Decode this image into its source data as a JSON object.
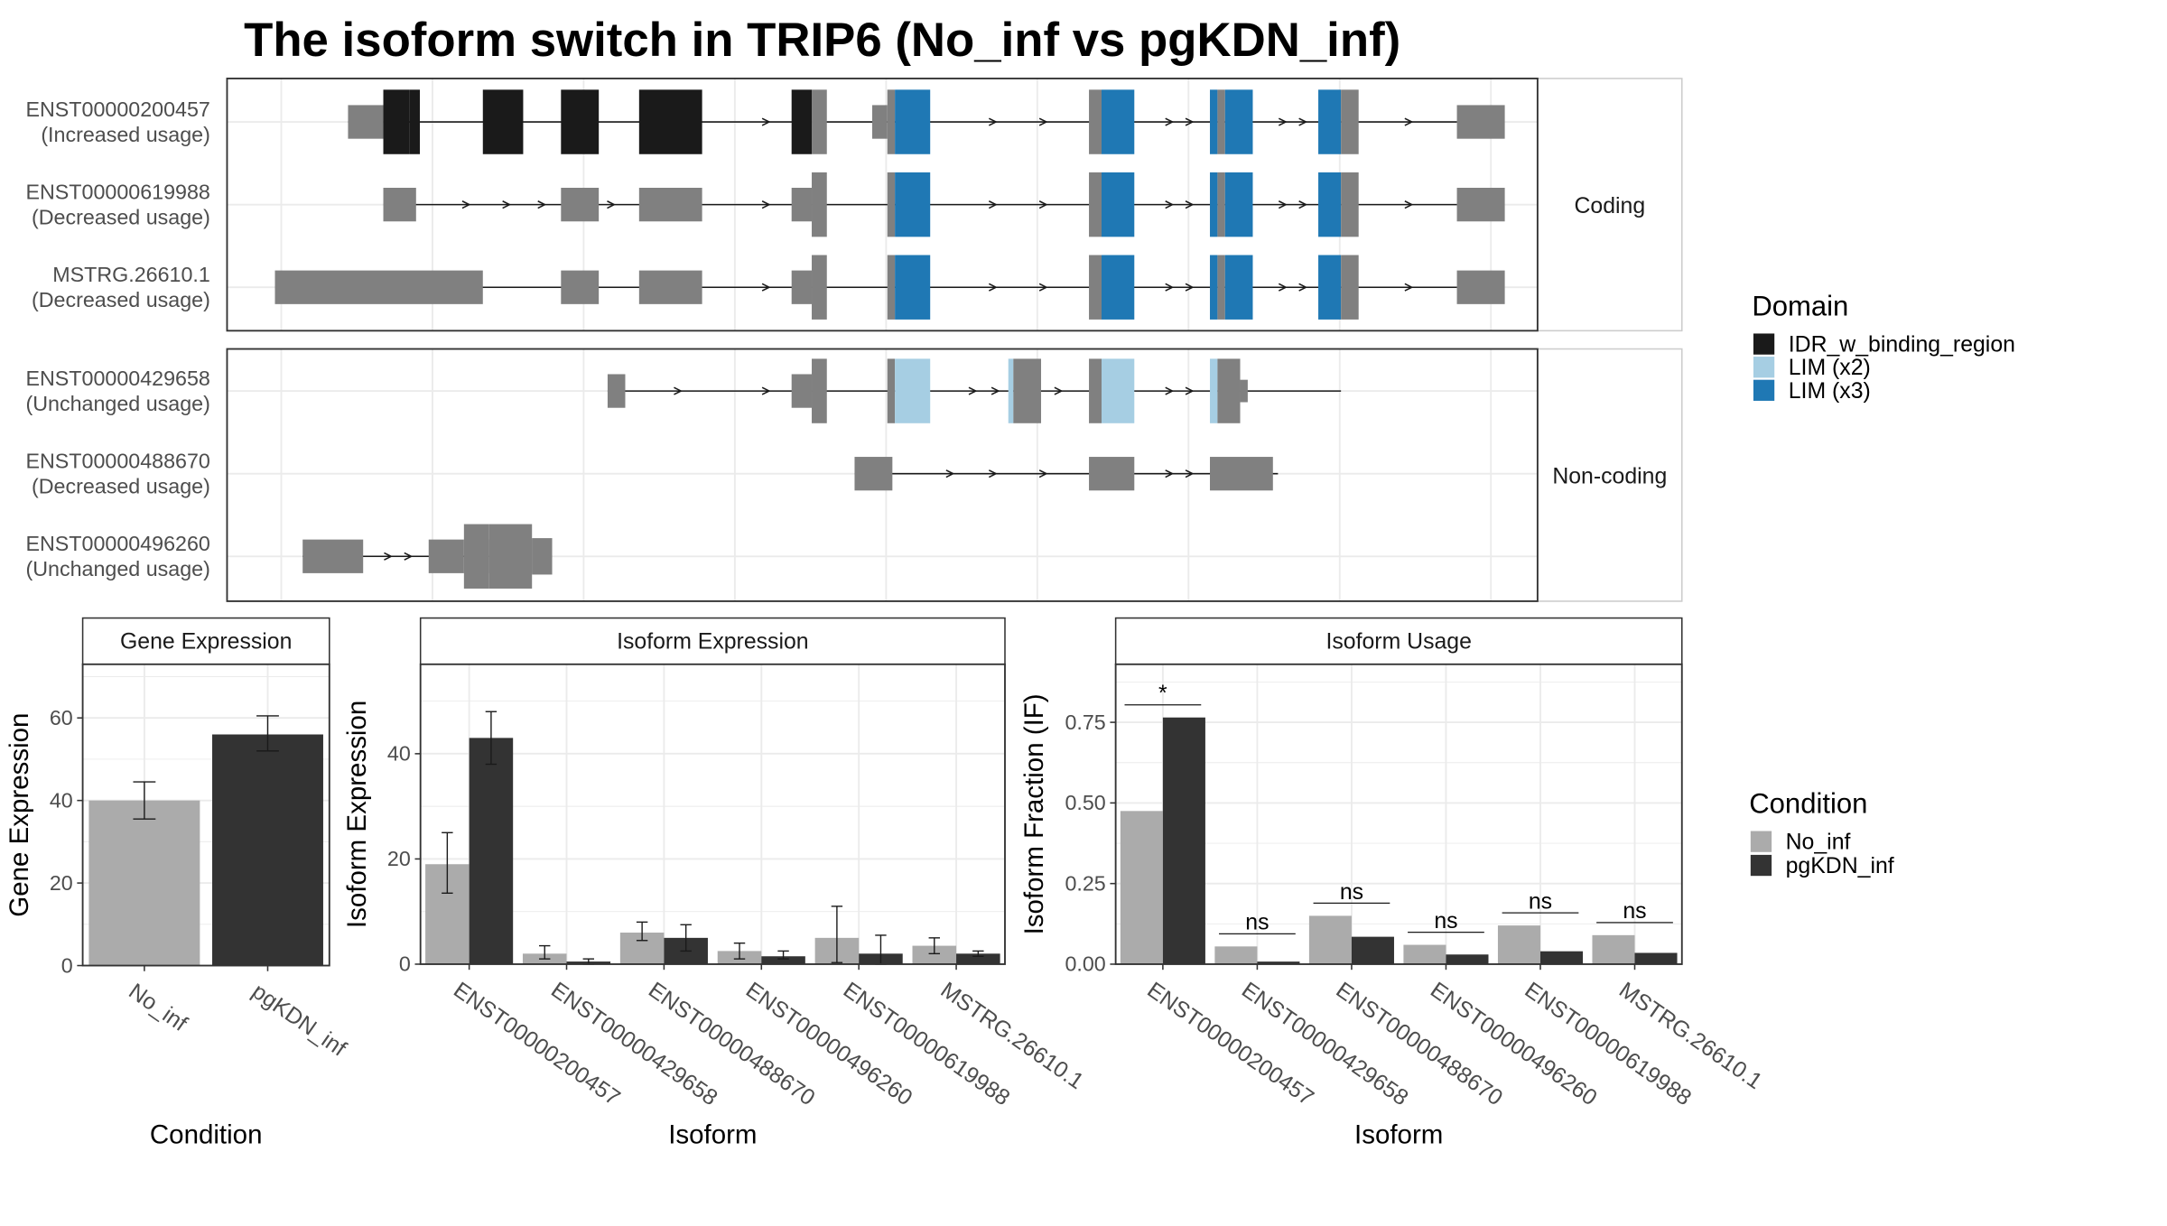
{
  "title": "The isoform switch in TRIP6 (No_inf vs pgKDN_inf)",
  "colors": {
    "idr": "#1a1a1a",
    "lim2": "#a6cee3",
    "lim3": "#1f78b4",
    "gene_body": "#808080",
    "no_inf": "#ababab",
    "pgkdn_inf": "#333333",
    "panel_border": "#333333",
    "strip_fill": "#ffffff",
    "grid": "#ebebeb"
  },
  "transcripts": {
    "facets": [
      "Coding",
      "Non-coding"
    ],
    "tracks": [
      {
        "id": "ENST00000200457",
        "usage": "(Increased usage)",
        "facet": "Coding",
        "line": [
          0.96,
          9.76
        ],
        "utr": [
          [
            0.96,
            1.24
          ],
          [
            5.12,
            5.24
          ],
          [
            9.76,
            10.14
          ]
        ],
        "cds": [
          {
            "s": 1.24,
            "e": 1.45,
            "d": "idr"
          },
          {
            "s": 1.45,
            "e": 1.53,
            "d": "idr"
          },
          {
            "s": 2.03,
            "e": 2.35,
            "d": "idr"
          },
          {
            "s": 2.65,
            "e": 2.95,
            "d": "idr"
          },
          {
            "s": 3.27,
            "e": 3.77,
            "d": "idr"
          },
          {
            "s": 4.48,
            "e": 4.64,
            "d": "idr"
          },
          {
            "s": 4.64,
            "e": 4.76,
            "d": "none"
          },
          {
            "s": 5.24,
            "e": 5.3,
            "d": "none"
          },
          {
            "s": 5.3,
            "e": 5.58,
            "d": "lim3"
          },
          {
            "s": 6.84,
            "e": 6.94,
            "d": "none"
          },
          {
            "s": 6.94,
            "e": 7.2,
            "d": "lim3"
          },
          {
            "s": 7.8,
            "e": 7.86,
            "d": "lim3"
          },
          {
            "s": 7.86,
            "e": 7.92,
            "d": "none"
          },
          {
            "s": 7.92,
            "e": 8.14,
            "d": "lim3"
          },
          {
            "s": 8.66,
            "e": 8.84,
            "d": "lim3"
          },
          {
            "s": 8.84,
            "e": 8.98,
            "d": "none"
          }
        ],
        "arrows": [
          4.28,
          6.08,
          6.48,
          7.48,
          7.64,
          8.38,
          8.54,
          9.38
        ]
      },
      {
        "id": "ENST00000619988",
        "usage": "(Decreased usage)",
        "facet": "Coding",
        "line": [
          1.24,
          9.76
        ],
        "utr": [
          [
            1.24,
            1.5
          ],
          [
            2.65,
            2.95
          ],
          [
            3.27,
            3.77
          ],
          [
            4.48,
            4.64
          ],
          [
            9.76,
            10.14
          ]
        ],
        "cds": [
          {
            "s": 4.64,
            "e": 4.76,
            "d": "none"
          },
          {
            "s": 5.24,
            "e": 5.3,
            "d": "none"
          },
          {
            "s": 5.3,
            "e": 5.58,
            "d": "lim3"
          },
          {
            "s": 6.84,
            "e": 6.94,
            "d": "none"
          },
          {
            "s": 6.94,
            "e": 7.2,
            "d": "lim3"
          },
          {
            "s": 7.8,
            "e": 7.86,
            "d": "lim3"
          },
          {
            "s": 7.86,
            "e": 7.92,
            "d": "none"
          },
          {
            "s": 7.92,
            "e": 8.14,
            "d": "lim3"
          },
          {
            "s": 8.66,
            "e": 8.84,
            "d": "lim3"
          },
          {
            "s": 8.84,
            "e": 8.98,
            "d": "none"
          }
        ],
        "arrows": [
          1.9,
          2.22,
          2.5,
          3.05,
          4.28,
          6.08,
          6.48,
          7.48,
          7.64,
          8.38,
          8.54,
          9.38
        ]
      },
      {
        "id": "MSTRG.26610.1",
        "usage": "(Decreased usage)",
        "facet": "Coding",
        "line": [
          0.38,
          9.76
        ],
        "utr": [
          [
            0.38,
            2.03
          ],
          [
            2.65,
            2.95
          ],
          [
            3.27,
            3.77
          ],
          [
            4.48,
            4.64
          ],
          [
            9.76,
            10.14
          ]
        ],
        "cds": [
          {
            "s": 4.64,
            "e": 4.76,
            "d": "none"
          },
          {
            "s": 5.24,
            "e": 5.3,
            "d": "none"
          },
          {
            "s": 5.3,
            "e": 5.58,
            "d": "lim3"
          },
          {
            "s": 6.84,
            "e": 6.94,
            "d": "none"
          },
          {
            "s": 6.94,
            "e": 7.2,
            "d": "lim3"
          },
          {
            "s": 7.8,
            "e": 7.86,
            "d": "lim3"
          },
          {
            "s": 7.86,
            "e": 7.92,
            "d": "none"
          },
          {
            "s": 7.92,
            "e": 8.14,
            "d": "lim3"
          },
          {
            "s": 8.66,
            "e": 8.84,
            "d": "lim3"
          },
          {
            "s": 8.84,
            "e": 8.98,
            "d": "none"
          }
        ],
        "arrows": [
          4.28,
          6.08,
          6.48,
          7.48,
          7.64,
          8.38,
          8.54,
          9.38
        ]
      },
      {
        "id": "ENST00000429658",
        "usage": "(Unchanged usage)",
        "facet": "Non-coding",
        "line": [
          3.02,
          8.84
        ],
        "utr": [
          [
            3.02,
            3.16
          ],
          [
            4.48,
            4.64
          ]
        ],
        "cds": [
          {
            "s": 4.64,
            "e": 4.76,
            "d": "none"
          },
          {
            "s": 5.24,
            "e": 5.3,
            "d": "none"
          },
          {
            "s": 5.3,
            "e": 5.58,
            "d": "lim2"
          },
          {
            "s": 6.2,
            "e": 6.24,
            "d": "lim2"
          },
          {
            "s": 6.24,
            "e": 6.46,
            "d": "none"
          },
          {
            "s": 6.84,
            "e": 6.94,
            "d": "none"
          },
          {
            "s": 6.94,
            "e": 7.2,
            "d": "lim2"
          },
          {
            "s": 7.8,
            "e": 7.86,
            "d": "lim2"
          },
          {
            "s": 7.86,
            "e": 8.04,
            "d": "none"
          }
        ],
        "utr_end": [
          [
            8.04,
            8.1
          ]
        ],
        "arrows": [
          3.58,
          4.28,
          5.92,
          6.1,
          6.6,
          7.48,
          7.64
        ]
      },
      {
        "id": "ENST00000488670",
        "usage": "(Decreased usage)",
        "facet": "Non-coding",
        "line": [
          4.98,
          8.34
        ],
        "utr": [
          [
            4.98,
            5.28
          ],
          [
            6.84,
            7.2
          ],
          [
            7.8,
            8.3
          ]
        ],
        "cds": [],
        "arrows": [
          5.74,
          6.08,
          6.48,
          7.48,
          7.64
        ]
      },
      {
        "id": "ENST00000496260",
        "usage": "(Unchanged usage)",
        "facet": "Non-coding",
        "line": [
          0.6,
          2.08
        ],
        "utr": [
          [
            0.6,
            1.08
          ],
          [
            1.6,
            1.88
          ],
          [
            2.08,
            2.42
          ],
          [
            2.42,
            2.58
          ]
        ],
        "cds": [
          {
            "s": 1.88,
            "e": 2.08,
            "d": "none"
          },
          {
            "s": 2.08,
            "e": 2.42,
            "d": "none"
          }
        ],
        "arrows": [
          1.28,
          1.44
        ]
      }
    ]
  },
  "domain_legend": {
    "title": "Domain",
    "items": [
      {
        "label": "IDR_w_binding_region",
        "color": "#1a1a1a"
      },
      {
        "label": "LIM (x2)",
        "color": "#a6cee3"
      },
      {
        "label": "LIM (x3)",
        "color": "#1f78b4"
      }
    ]
  },
  "condition_legend": {
    "title": "Condition",
    "items": [
      {
        "label": "No_inf",
        "color": "#ababab"
      },
      {
        "label": "pgKDN_inf",
        "color": "#333333"
      }
    ]
  },
  "chart_data": [
    {
      "type": "bar",
      "title": "Gene Expression",
      "xlabel": "Condition",
      "ylabel": "Gene Expression",
      "ylim": [
        0,
        73
      ],
      "yticks": [
        0,
        20,
        40,
        60
      ],
      "categories": [
        "No_inf",
        "pgKDN_inf"
      ],
      "values": [
        40,
        56
      ],
      "errors": [
        [
          35.5,
          44.5
        ],
        [
          52,
          60.5
        ]
      ],
      "colors": [
        "#ababab",
        "#333333"
      ]
    },
    {
      "type": "bar",
      "title": "Isoform Expression",
      "xlabel": "Isoform",
      "ylabel": "Isoform Expression",
      "ylim": [
        0,
        57
      ],
      "yticks": [
        0,
        20,
        40
      ],
      "categories": [
        "ENST00000200457",
        "ENST00000429658",
        "ENST00000488670",
        "ENST00000496260",
        "ENST00000619988",
        "MSTRG.26610.1"
      ],
      "series": [
        {
          "name": "No_inf",
          "values": [
            19,
            2,
            6,
            2.5,
            5,
            3.5
          ],
          "errors": [
            [
              13.5,
              25
            ],
            [
              1,
              3.5
            ],
            [
              4.5,
              8
            ],
            [
              1,
              4
            ],
            [
              0.3,
              11
            ],
            [
              2,
              5
            ]
          ]
        },
        {
          "name": "pgKDN_inf",
          "values": [
            43,
            0.5,
            5,
            1.5,
            2,
            2
          ],
          "errors": [
            [
              38,
              48
            ],
            [
              0,
              1
            ],
            [
              2.5,
              7.5
            ],
            [
              1,
              2.5
            ],
            [
              0,
              5.5
            ],
            [
              1.5,
              2.5
            ]
          ]
        }
      ]
    },
    {
      "type": "bar",
      "title": "Isoform Usage",
      "xlabel": "Isoform",
      "ylabel": "Isoform Fraction (IF)",
      "ylim": [
        0,
        0.93
      ],
      "yticks": [
        "0.00",
        "0.25",
        "0.50",
        "0.75"
      ],
      "categories": [
        "ENST00000200457",
        "ENST00000429658",
        "ENST00000488670",
        "ENST00000496260",
        "ENST00000619988",
        "MSTRG.26610.1"
      ],
      "series": [
        {
          "name": "No_inf",
          "values": [
            0.475,
            0.055,
            0.15,
            0.06,
            0.12,
            0.09
          ]
        },
        {
          "name": "pgKDN_inf",
          "values": [
            0.765,
            0.008,
            0.085,
            0.03,
            0.04,
            0.035
          ]
        }
      ],
      "significance": [
        "*",
        "ns",
        "ns",
        "ns",
        "ns",
        "ns"
      ]
    }
  ]
}
